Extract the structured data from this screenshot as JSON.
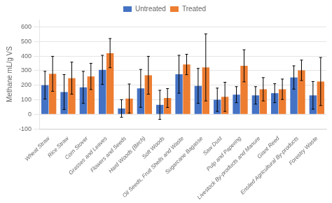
{
  "chart_data": {
    "type": "bar",
    "categories": [
      "Wheat Straw",
      "Rice Straw",
      "Corn Stover",
      "Grasses and Leaves",
      "Flowers and Seeds",
      "Hard Woods (Birch)",
      "Soft Woods",
      "Oil Seeds, Fruit Shells and Waste",
      "Sugarcane Bagasse",
      "Saw Dust",
      "Pulp and Papering",
      "Livestock By-products and Manure",
      "Giant Reed",
      "Ensiled Agricultural By-products",
      "Forestry Waste"
    ],
    "series": [
      {
        "name": "Untreated",
        "color": "#4472c4",
        "values": [
          200,
          153,
          185,
          305,
          40,
          178,
          65,
          275,
          195,
          100,
          135,
          130,
          145,
          253,
          130
        ],
        "errors": [
          95,
          120,
          110,
          100,
          60,
          130,
          100,
          130,
          120,
          80,
          55,
          60,
          65,
          80,
          95
        ]
      },
      {
        "name": "Treated",
        "color": "#ed7d31",
        "values": [
          278,
          248,
          260,
          420,
          108,
          268,
          112,
          342,
          322,
          120,
          333,
          172,
          172,
          302,
          225
        ],
        "errors": [
          120,
          110,
          90,
          100,
          100,
          130,
          65,
          70,
          230,
          100,
          110,
          80,
          70,
          70,
          165
        ]
      }
    ],
    "ylabel": "Methane mL/g VS",
    "ylim": [
      -100,
      650
    ],
    "yticks": [
      -100,
      0,
      100,
      200,
      300,
      400,
      500,
      600
    ],
    "grid": true,
    "legend": "top"
  }
}
